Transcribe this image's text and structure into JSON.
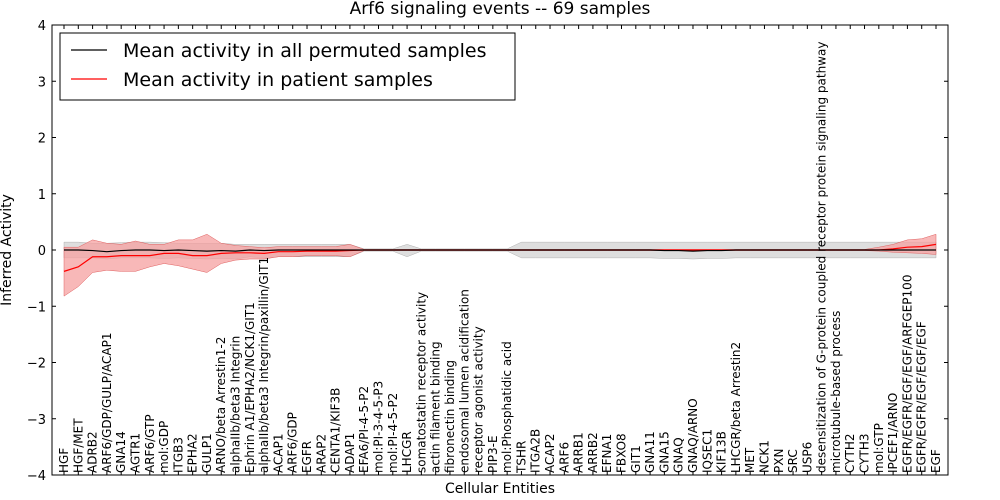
{
  "chart_data": {
    "type": "line",
    "title": "Arf6 signaling events -- 69 samples",
    "xlabel": "Cellular Entities",
    "ylabel": "Inferred Activity",
    "ylim": [
      -4,
      4
    ],
    "yticks": [
      -4,
      -3,
      -2,
      -1,
      0,
      1,
      2,
      3,
      4
    ],
    "legend_position": "top-left",
    "grid": false,
    "categories": [
      "HGF",
      "HGF/MET",
      "ADRB2",
      "ARF6/GDP/GULP/ACAP1",
      "GNA14",
      "AGTR1",
      "ARF6/GTP",
      "mol:GDP",
      "ITGB3",
      "EPHA2",
      "GULP1",
      "ARNO/beta Arrestin1-2",
      "alphaIIb/beta3 Integrin",
      "Ephrin A1/EPHA2/NCK1/GIT1",
      "alphaIIb/beta3 Integrin/paxillin/GIT1",
      "ACAP1",
      "ARF6/GDP",
      "EGFR",
      "ARAP2",
      "CENTA1/KIF3B",
      "ADAP1",
      "EFA6/PI-4-5-P2",
      "mol:PI-3-4-5-P3",
      "mol:PI-4-5-P2",
      "LHCGR",
      "somatostatin receptor activity",
      "actin filament binding",
      "fibronectin binding",
      "endosomal lumen acidification",
      "receptor agonist activity",
      "PIP3-E",
      "mol:Phosphatidic acid",
      "TSHR",
      "ITGA2B",
      "ACAP2",
      "ARF6",
      "ARRB1",
      "ARRB2",
      "EFNA1",
      "FBXO8",
      "GIT1",
      "GNA11",
      "GNA15",
      "GNAQ",
      "GNAQ/ARNO",
      "IQSEC1",
      "KIF13B",
      "LHCGR/beta Arrestin2",
      "MET",
      "NCK1",
      "PXN",
      "SRC",
      "USP6",
      "desensitization of G-protein coupled receptor protein signaling pathway",
      "microtubule-based process",
      "CYTH2",
      "CYTH3",
      "mol:GTP",
      "IPCEF1/ARNO",
      "EGFR/EGFR/EGF/EGF/ARFGEP100",
      "EGFR/EGFR/EGF/EGF/EGF",
      "EGF"
    ],
    "series": [
      {
        "name": "Mean activity in all permuted samples",
        "color": "#000000",
        "band_color": "#c8c8c8",
        "values": [
          0.0,
          0.0,
          -0.01,
          -0.03,
          -0.01,
          0.0,
          0.0,
          -0.01,
          0.0,
          -0.01,
          -0.02,
          -0.01,
          -0.02,
          0.0,
          -0.01,
          0.0,
          0.0,
          0.0,
          0.0,
          0.0,
          0.0,
          0.0,
          0.0,
          0.0,
          0.0,
          0.0,
          0.0,
          0.0,
          0.0,
          0.0,
          0.0,
          0.0,
          0.0,
          0.0,
          0.0,
          0.0,
          0.0,
          0.0,
          0.0,
          0.0,
          0.0,
          0.0,
          -0.01,
          -0.01,
          -0.02,
          -0.01,
          -0.01,
          0.0,
          0.0,
          0.0,
          0.0,
          0.0,
          0.0,
          0.0,
          0.0,
          0.0,
          0.0,
          0.0,
          0.0,
          0.0,
          0.0,
          0.0
        ],
        "upper": [
          0.14,
          0.14,
          0.12,
          0.12,
          0.13,
          0.14,
          0.14,
          0.13,
          0.12,
          0.12,
          0.12,
          0.12,
          0.1,
          0.1,
          0.1,
          0.1,
          0.1,
          0.1,
          0.1,
          0.1,
          0.1,
          0.02,
          0.02,
          0.02,
          0.1,
          0.02,
          0.02,
          0.02,
          0.02,
          0.02,
          0.02,
          0.02,
          0.14,
          0.14,
          0.14,
          0.14,
          0.14,
          0.14,
          0.14,
          0.14,
          0.14,
          0.14,
          0.14,
          0.14,
          0.14,
          0.14,
          0.14,
          0.14,
          0.14,
          0.14,
          0.14,
          0.14,
          0.14,
          0.14,
          0.14,
          0.14,
          0.14,
          0.14,
          0.14,
          0.14,
          0.14,
          0.14
        ],
        "lower": [
          -0.14,
          -0.14,
          -0.14,
          -0.16,
          -0.14,
          -0.14,
          -0.14,
          -0.15,
          -0.14,
          -0.15,
          -0.16,
          -0.15,
          -0.16,
          -0.12,
          -0.14,
          -0.12,
          -0.12,
          -0.12,
          -0.12,
          -0.12,
          -0.12,
          -0.02,
          -0.02,
          -0.02,
          -0.12,
          -0.02,
          -0.02,
          -0.02,
          -0.02,
          -0.02,
          -0.02,
          -0.02,
          -0.14,
          -0.14,
          -0.14,
          -0.14,
          -0.14,
          -0.14,
          -0.14,
          -0.14,
          -0.14,
          -0.14,
          -0.15,
          -0.15,
          -0.16,
          -0.15,
          -0.15,
          -0.14,
          -0.14,
          -0.14,
          -0.14,
          -0.14,
          -0.14,
          -0.14,
          -0.14,
          -0.14,
          -0.14,
          -0.14,
          -0.14,
          -0.14,
          -0.14,
          -0.14
        ]
      },
      {
        "name": "Mean activity in patient samples",
        "color": "#ff0000",
        "band_color": "#f5a0a0",
        "values": [
          -0.38,
          -0.3,
          -0.12,
          -0.12,
          -0.1,
          -0.1,
          -0.1,
          -0.06,
          -0.06,
          -0.1,
          -0.1,
          -0.06,
          -0.05,
          -0.05,
          -0.06,
          -0.03,
          -0.03,
          -0.02,
          -0.02,
          -0.02,
          -0.01,
          0.0,
          0.0,
          0.0,
          0.0,
          0.0,
          0.0,
          0.0,
          0.0,
          0.0,
          0.0,
          0.0,
          0.0,
          0.0,
          0.0,
          0.0,
          0.0,
          0.0,
          0.0,
          0.0,
          0.0,
          0.0,
          0.0,
          0.0,
          0.0,
          0.0,
          0.0,
          0.0,
          0.0,
          0.0,
          0.0,
          0.0,
          0.0,
          0.0,
          0.0,
          0.0,
          0.0,
          0.0,
          0.02,
          0.05,
          0.06,
          0.1
        ],
        "upper": [
          0.05,
          0.05,
          0.18,
          0.12,
          0.1,
          0.16,
          0.1,
          0.1,
          0.18,
          0.18,
          0.28,
          0.12,
          0.08,
          0.06,
          0.04,
          0.06,
          0.06,
          0.06,
          0.06,
          0.06,
          0.1,
          0.01,
          0.01,
          0.01,
          0.01,
          0.01,
          0.01,
          0.01,
          0.01,
          0.01,
          0.01,
          0.01,
          0.01,
          0.01,
          0.01,
          0.01,
          0.01,
          0.01,
          0.01,
          0.01,
          0.01,
          0.01,
          0.01,
          0.01,
          0.01,
          0.01,
          0.01,
          0.01,
          0.01,
          0.01,
          0.01,
          0.01,
          0.01,
          0.01,
          0.01,
          0.01,
          0.01,
          0.05,
          0.1,
          0.18,
          0.2,
          0.28
        ],
        "lower": [
          -0.82,
          -0.65,
          -0.4,
          -0.36,
          -0.38,
          -0.38,
          -0.3,
          -0.24,
          -0.28,
          -0.34,
          -0.4,
          -0.24,
          -0.18,
          -0.16,
          -0.16,
          -0.12,
          -0.12,
          -0.1,
          -0.1,
          -0.1,
          -0.12,
          -0.01,
          -0.01,
          -0.01,
          -0.01,
          -0.01,
          -0.01,
          -0.01,
          -0.01,
          -0.01,
          -0.01,
          -0.01,
          -0.01,
          -0.01,
          -0.01,
          -0.01,
          -0.01,
          -0.01,
          -0.01,
          -0.01,
          -0.01,
          -0.01,
          -0.01,
          -0.01,
          -0.01,
          -0.01,
          -0.01,
          -0.01,
          -0.01,
          -0.01,
          -0.01,
          -0.01,
          -0.01,
          -0.01,
          -0.01,
          -0.01,
          -0.01,
          -0.02,
          -0.04,
          -0.05,
          -0.06,
          -0.08
        ]
      }
    ]
  }
}
